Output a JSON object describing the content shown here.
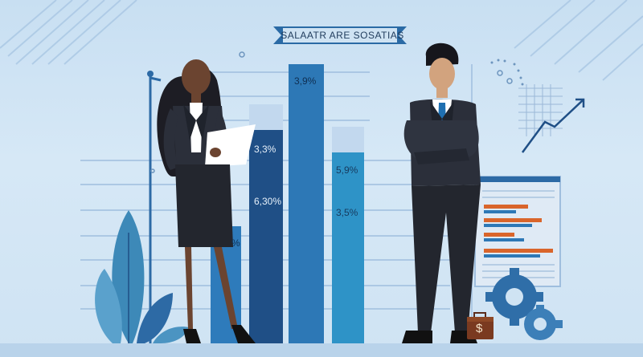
{
  "banner": {
    "title": "SALAATR ARE SOSATIAS"
  },
  "bar_labels": {
    "tall_bar": "3,9%",
    "left_bar_upper": "3,3%",
    "left_bar_lower": "6,30%",
    "right_bar_upper": "5,9%",
    "right_bar_lower": "3,5%",
    "short_bar": "%"
  },
  "money_symbol": "$",
  "colors": {
    "background": "#cfe3f3",
    "bar_dark": "#1f4f86",
    "bar_mid": "#2d78b6",
    "bar_teal": "#2e93c7",
    "suit": "#23262e",
    "plant": "#3d89b8",
    "accent_orange": "#d9652b"
  },
  "icons": [
    "gear-icon",
    "briefcase-icon",
    "chart-icon",
    "plant-icon"
  ]
}
